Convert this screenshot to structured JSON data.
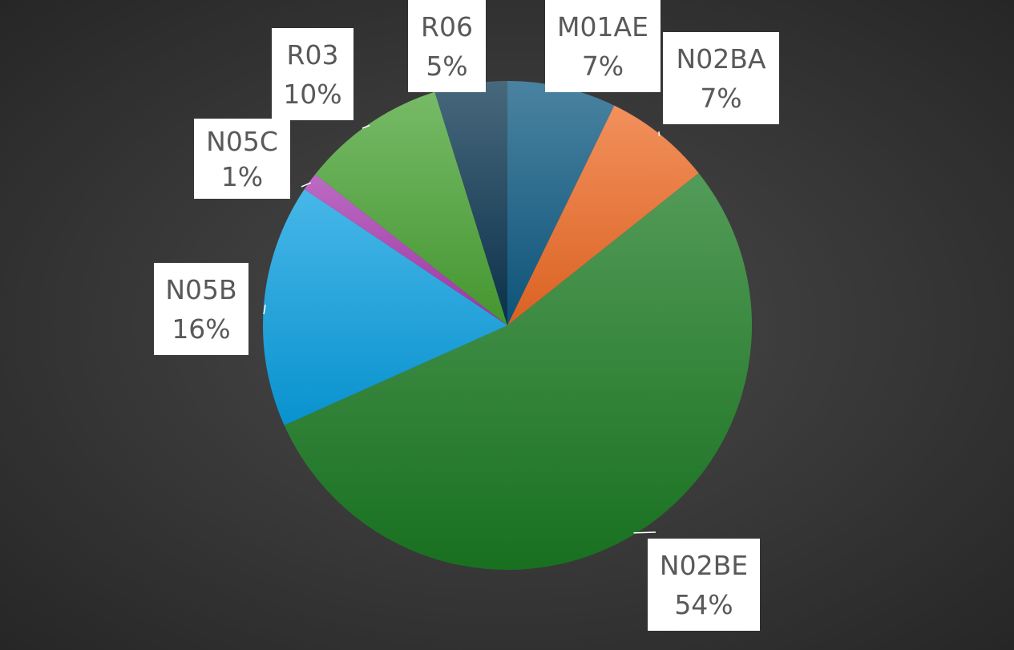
{
  "chart_data": {
    "type": "pie",
    "start_angle_deg": 0,
    "direction": "clockwise",
    "slices": [
      {
        "label": "M01AE",
        "percent_label": "7%",
        "value": 7.2,
        "color": "#0e5a82"
      },
      {
        "label": "N02BA",
        "percent_label": "7%",
        "value": 7.1,
        "color": "#ed6b25"
      },
      {
        "label": "N02BE",
        "percent_label": "54%",
        "value": 54.0,
        "color": "#1a7a22"
      },
      {
        "label": "N05B",
        "percent_label": "16%",
        "value": 16.1,
        "color": "#0a9fe0"
      },
      {
        "label": "N05C",
        "percent_label": "1%",
        "value": 1.2,
        "color": "#a73ab0"
      },
      {
        "label": "R03",
        "percent_label": "10%",
        "value": 9.6,
        "color": "#4aa334"
      },
      {
        "label": "R06",
        "percent_label": "5%",
        "value": 4.8,
        "color": "#0b3550"
      }
    ]
  }
}
